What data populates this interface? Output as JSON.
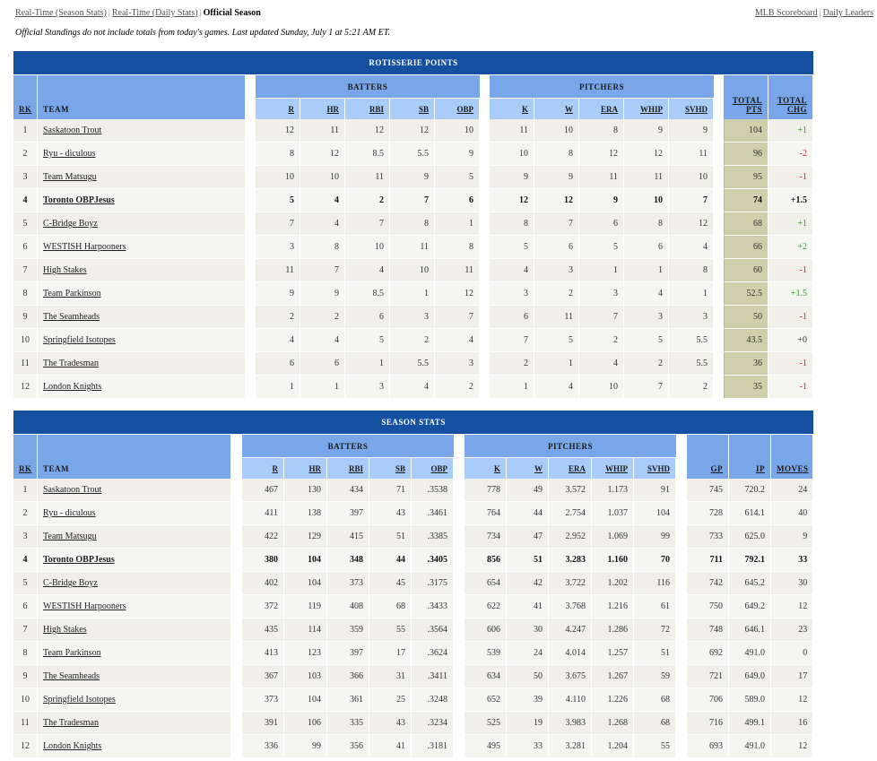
{
  "topnav": {
    "links": [
      "Real-Time (Season Stats)",
      "Real-Time (Daily Stats)"
    ],
    "current": "Official Season",
    "separator": "|"
  },
  "rightnav": {
    "links": [
      "MLB Scoreboard",
      "Daily Leaders"
    ],
    "separator": "|"
  },
  "notice": "Official Standings do not include totals from today's games. Last updated Sunday, July 1 at 5:21 AM ET.",
  "colors": {
    "title_bg": "#1550a0",
    "group_bg": "#78a6e8",
    "col_bg": "#aaccf8",
    "pts_bg": "#cfcfab",
    "positive": "#2a9a2a",
    "negative": "#e02020"
  },
  "roto": {
    "title": "ROTISSERIE POINTS",
    "groups": {
      "batters": "BATTERS",
      "pitchers": "PITCHERS"
    },
    "headers": {
      "rk": "RK",
      "team": "TEAM",
      "batters": [
        "R",
        "HR",
        "RBI",
        "SB",
        "OBP"
      ],
      "pitchers": [
        "K",
        "W",
        "ERA",
        "WHIP",
        "SVHD"
      ],
      "total_pts_1": "TOTAL",
      "total_pts_2": "PTS",
      "total_chg_1": "TOTAL",
      "total_chg_2": "CHG"
    },
    "rows": [
      {
        "rk": "1",
        "team": "Saskatoon Trout",
        "b": [
          "12",
          "11",
          "12",
          "12",
          "10"
        ],
        "p": [
          "11",
          "10",
          "8",
          "9",
          "9"
        ],
        "pts": "104",
        "chg": "+1"
      },
      {
        "rk": "2",
        "team": "Ryu - diculous",
        "b": [
          "8",
          "12",
          "8.5",
          "5.5",
          "9"
        ],
        "p": [
          "10",
          "8",
          "12",
          "12",
          "11"
        ],
        "pts": "96",
        "chg": "-2"
      },
      {
        "rk": "3",
        "team": "Team Matsugu",
        "b": [
          "10",
          "10",
          "11",
          "9",
          "5"
        ],
        "p": [
          "9",
          "9",
          "11",
          "11",
          "10"
        ],
        "pts": "95",
        "chg": "-1"
      },
      {
        "rk": "4",
        "team": "Toronto OBPJesus",
        "b": [
          "5",
          "4",
          "2",
          "7",
          "6"
        ],
        "p": [
          "12",
          "12",
          "9",
          "10",
          "7"
        ],
        "pts": "74",
        "chg": "+1.5"
      },
      {
        "rk": "5",
        "team": "C-Bridge Boyz",
        "b": [
          "7",
          "4",
          "7",
          "8",
          "1"
        ],
        "p": [
          "8",
          "7",
          "6",
          "8",
          "12"
        ],
        "pts": "68",
        "chg": "+1"
      },
      {
        "rk": "6",
        "team": "WESTISH Harpooners",
        "b": [
          "3",
          "8",
          "10",
          "11",
          "8"
        ],
        "p": [
          "5",
          "6",
          "5",
          "6",
          "4"
        ],
        "pts": "66",
        "chg": "+2"
      },
      {
        "rk": "7",
        "team": "High Stakes",
        "b": [
          "11",
          "7",
          "4",
          "10",
          "11"
        ],
        "p": [
          "4",
          "3",
          "1",
          "1",
          "8"
        ],
        "pts": "60",
        "chg": "-1"
      },
      {
        "rk": "8",
        "team": "Team Parkinson",
        "b": [
          "9",
          "9",
          "8.5",
          "1",
          "12"
        ],
        "p": [
          "3",
          "2",
          "3",
          "4",
          "1"
        ],
        "pts": "52.5",
        "chg": "+1.5"
      },
      {
        "rk": "9",
        "team": "The Seamheads",
        "b": [
          "2",
          "2",
          "6",
          "3",
          "7"
        ],
        "p": [
          "6",
          "11",
          "7",
          "3",
          "3"
        ],
        "pts": "50",
        "chg": "-1"
      },
      {
        "rk": "10",
        "team": "Springfield Isotopes",
        "b": [
          "4",
          "4",
          "5",
          "2",
          "4"
        ],
        "p": [
          "7",
          "5",
          "2",
          "5",
          "5.5"
        ],
        "pts": "43.5",
        "chg": "+0"
      },
      {
        "rk": "11",
        "team": "The Tradesman",
        "b": [
          "6",
          "6",
          "1",
          "5.5",
          "3"
        ],
        "p": [
          "2",
          "1",
          "4",
          "2",
          "5.5"
        ],
        "pts": "36",
        "chg": "-1"
      },
      {
        "rk": "12",
        "team": "London Knights",
        "b": [
          "1",
          "1",
          "3",
          "4",
          "2"
        ],
        "p": [
          "1",
          "4",
          "10",
          "7",
          "2"
        ],
        "pts": "35",
        "chg": "-1"
      }
    ]
  },
  "season": {
    "title": "SEASON STATS",
    "groups": {
      "batters": "BATTERS",
      "pitchers": "PITCHERS"
    },
    "headers": {
      "rk": "RK",
      "team": "TEAM",
      "batters": [
        "R",
        "HR",
        "RBI",
        "SB",
        "OBP"
      ],
      "pitchers": [
        "K",
        "W",
        "ERA",
        "WHIP",
        "SVHD"
      ],
      "extra": [
        "GP",
        "IP",
        "MOVES"
      ]
    },
    "rows": [
      {
        "rk": "1",
        "team": "Saskatoon Trout",
        "b": [
          "467",
          "130",
          "434",
          "71",
          ".3538"
        ],
        "p": [
          "778",
          "49",
          "3.572",
          "1.173",
          "91"
        ],
        "x": [
          "745",
          "720.2",
          "24"
        ]
      },
      {
        "rk": "2",
        "team": "Ryu - diculous",
        "b": [
          "411",
          "138",
          "397",
          "43",
          ".3461"
        ],
        "p": [
          "764",
          "44",
          "2.754",
          "1.037",
          "104"
        ],
        "x": [
          "728",
          "614.1",
          "40"
        ]
      },
      {
        "rk": "3",
        "team": "Team Matsugu",
        "b": [
          "422",
          "129",
          "415",
          "51",
          ".3385"
        ],
        "p": [
          "734",
          "47",
          "2.952",
          "1.069",
          "99"
        ],
        "x": [
          "733",
          "625.0",
          "9"
        ]
      },
      {
        "rk": "4",
        "team": "Toronto OBPJesus",
        "b": [
          "380",
          "104",
          "348",
          "44",
          ".3405"
        ],
        "p": [
          "856",
          "51",
          "3.283",
          "1.160",
          "70"
        ],
        "x": [
          "711",
          "792.1",
          "33"
        ]
      },
      {
        "rk": "5",
        "team": "C-Bridge Boyz",
        "b": [
          "402",
          "104",
          "373",
          "45",
          ".3175"
        ],
        "p": [
          "654",
          "42",
          "3.722",
          "1.202",
          "116"
        ],
        "x": [
          "742",
          "645.2",
          "30"
        ]
      },
      {
        "rk": "6",
        "team": "WESTISH Harpooners",
        "b": [
          "372",
          "119",
          "408",
          "68",
          ".3433"
        ],
        "p": [
          "622",
          "41",
          "3.768",
          "1.216",
          "61"
        ],
        "x": [
          "750",
          "649.2",
          "12"
        ]
      },
      {
        "rk": "7",
        "team": "High Stakes",
        "b": [
          "435",
          "114",
          "359",
          "55",
          ".3564"
        ],
        "p": [
          "606",
          "30",
          "4.247",
          "1.286",
          "72"
        ],
        "x": [
          "748",
          "646.1",
          "23"
        ]
      },
      {
        "rk": "8",
        "team": "Team Parkinson",
        "b": [
          "413",
          "123",
          "397",
          "17",
          ".3624"
        ],
        "p": [
          "539",
          "24",
          "4.014",
          "1.257",
          "51"
        ],
        "x": [
          "692",
          "491.0",
          "0"
        ]
      },
      {
        "rk": "9",
        "team": "The Seamheads",
        "b": [
          "367",
          "103",
          "366",
          "31",
          ".3411"
        ],
        "p": [
          "634",
          "50",
          "3.675",
          "1.267",
          "59"
        ],
        "x": [
          "721",
          "649.0",
          "17"
        ]
      },
      {
        "rk": "10",
        "team": "Springfield Isotopes",
        "b": [
          "373",
          "104",
          "361",
          "25",
          ".3248"
        ],
        "p": [
          "652",
          "39",
          "4.110",
          "1.226",
          "68"
        ],
        "x": [
          "706",
          "589.0",
          "12"
        ]
      },
      {
        "rk": "11",
        "team": "The Tradesman",
        "b": [
          "391",
          "106",
          "335",
          "43",
          ".3234"
        ],
        "p": [
          "525",
          "19",
          "3.983",
          "1.268",
          "68"
        ],
        "x": [
          "716",
          "499.1",
          "16"
        ]
      },
      {
        "rk": "12",
        "team": "London Knights",
        "b": [
          "336",
          "99",
          "356",
          "41",
          ".3181"
        ],
        "p": [
          "495",
          "33",
          "3.281",
          "1.204",
          "55"
        ],
        "x": [
          "693",
          "491.0",
          "12"
        ]
      }
    ]
  },
  "highlight_team_index": 3
}
